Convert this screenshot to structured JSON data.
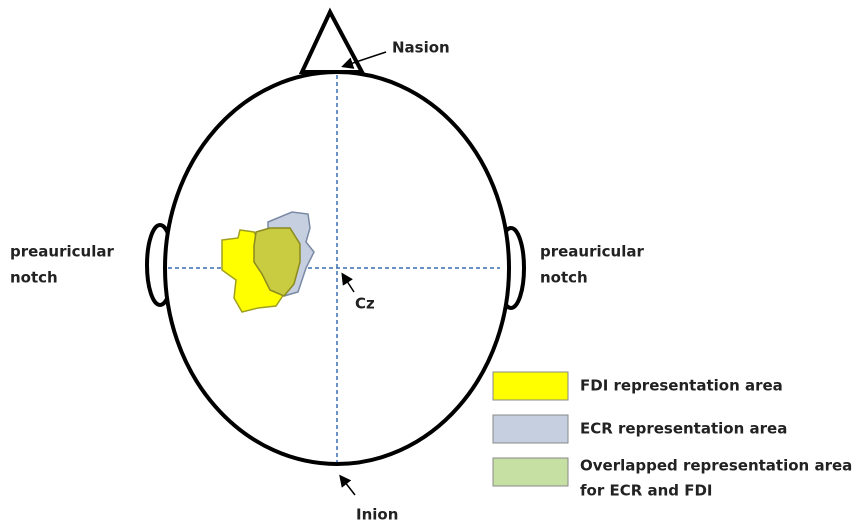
{
  "labels": {
    "nasion": "Nasion",
    "inion": "Inion",
    "cz": "Cz",
    "left_notch": [
      "preauricular",
      "notch"
    ],
    "right_notch": [
      "preauricular",
      "notch"
    ]
  },
  "legend": [
    {
      "label": [
        "FDI representation area"
      ]
    },
    {
      "label": [
        "ECR representation area"
      ]
    },
    {
      "label": [
        "Overlapped representation area",
        "for ECR and FDI"
      ]
    }
  ]
}
